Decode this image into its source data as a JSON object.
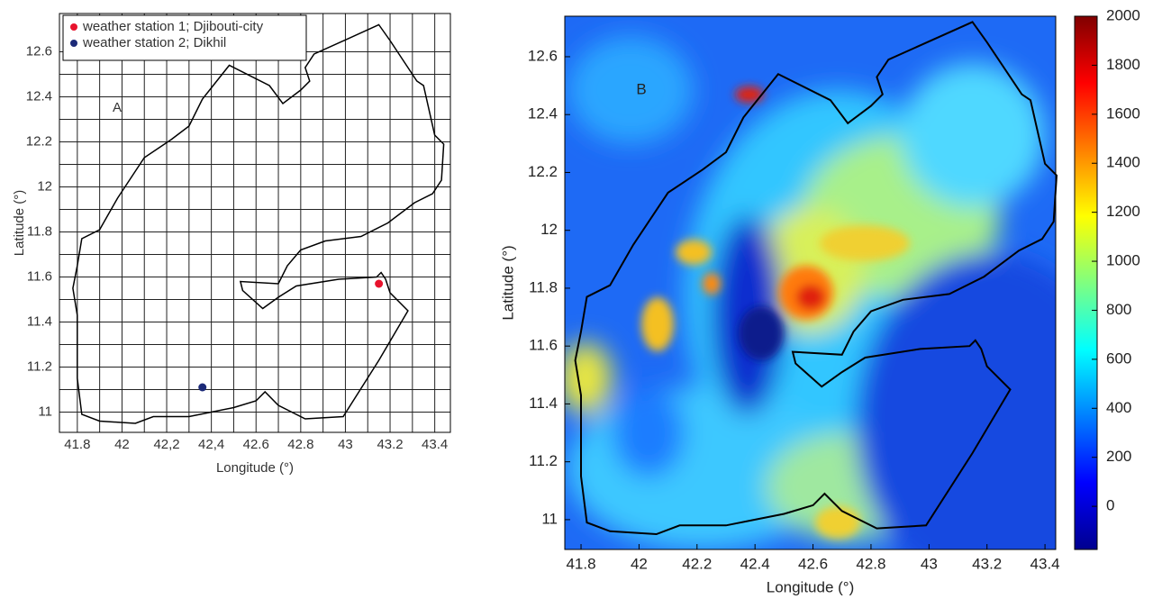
{
  "chart_data": [
    {
      "type": "scatter",
      "panel_label": "A",
      "xlabel": "Longitude (°)",
      "ylabel": "Latitude (°)",
      "series": [
        {
          "name": "weather station 1; Djibouti-city",
          "color": "#e8132d",
          "x": [
            43.15
          ],
          "values": [
            11.57
          ]
        },
        {
          "name": "weather station 2; Dikhil",
          "color": "#1c2a78",
          "x": [
            42.36
          ],
          "values": [
            11.11
          ]
        }
      ],
      "xlim": [
        41.72,
        43.47
      ],
      "ylim": [
        10.91,
        12.77
      ],
      "xticks": [
        41.8,
        42,
        {
          "value": 42.2,
          "label": "42,2"
        },
        {
          "value": 42.4,
          "label": "42,4"
        },
        42.6,
        42.8,
        43,
        43.2,
        43.4
      ],
      "yticks": [
        11,
        11.2,
        11.4,
        11.6,
        11.8,
        12,
        12.2,
        12.4,
        12.6
      ],
      "grid": true,
      "legend": "upper left"
    },
    {
      "type": "heatmap",
      "panel_label": "B",
      "xlabel": "Longitude (°)",
      "ylabel": "Latitude (°)",
      "xlim": [
        41.744,
        43.437
      ],
      "ylim": [
        10.897,
        12.74
      ],
      "xticks": [
        41.8,
        42,
        42.2,
        42.4,
        42.6,
        42.8,
        43,
        43.2,
        43.4
      ],
      "yticks": [
        11,
        11.2,
        11.4,
        11.6,
        11.8,
        12,
        12.2,
        12.4,
        12.6
      ],
      "colorbar": {
        "clim": [
          -176,
          2000
        ],
        "ticks": [
          0,
          200,
          400,
          600,
          800,
          1000,
          1200,
          1400,
          1600,
          1800,
          2000
        ],
        "colormap": "jet"
      }
    }
  ]
}
